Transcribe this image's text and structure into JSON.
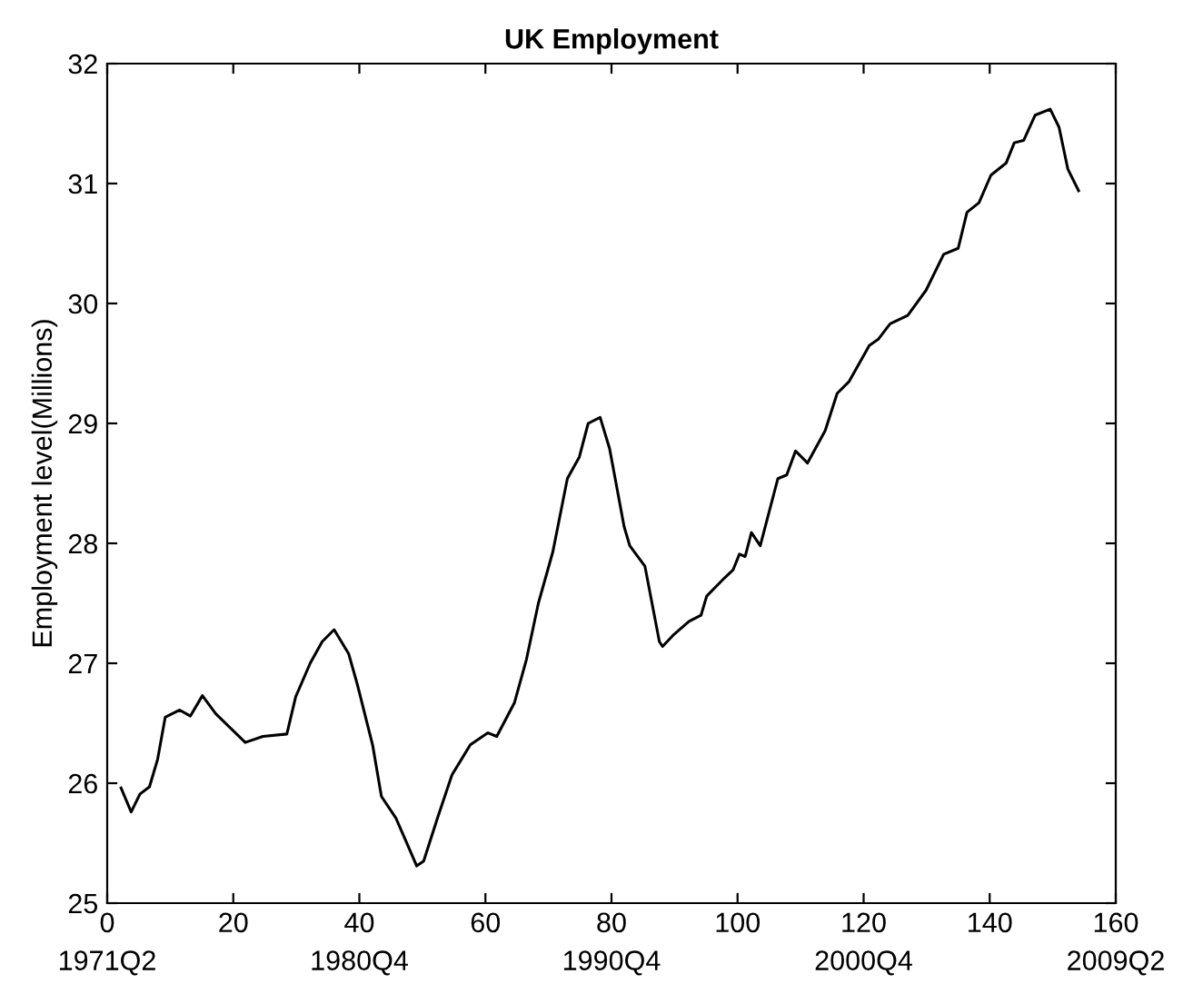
{
  "chart_data": {
    "type": "line",
    "title": "UK Employment",
    "ylabel": "Employment level(Millions)",
    "xlim": [
      0,
      160
    ],
    "xticks": [
      {
        "value": 0,
        "label": "0\n1971Q2"
      },
      20,
      {
        "value": 40,
        "label": "40\n1980Q4"
      },
      60,
      {
        "value": 80,
        "label": "80\n1990Q4"
      },
      100,
      {
        "value": 120,
        "label": "120\n2000Q4"
      },
      140,
      {
        "value": 160,
        "label": "160\n2009Q2"
      }
    ],
    "ylim": [
      25,
      32
    ],
    "yticks": [
      25,
      26,
      27,
      28,
      29,
      30,
      31,
      32
    ],
    "grid": false,
    "legend": false,
    "marker": "none",
    "line_style": "solid",
    "series": [
      {
        "color": "#000000",
        "x": [
          2.2,
          3.8,
          5.2,
          6.7,
          8,
          9.2,
          11.5,
          13.2,
          15.1,
          17.2,
          21.9,
          24.7,
          28.5,
          29.9,
          32.2,
          34.1,
          36,
          38.3,
          39.7,
          42.1,
          43.5,
          45.8,
          47.7,
          49.1,
          50.2,
          52.4,
          54.7,
          57.6,
          60.4,
          61.8,
          64.6,
          66.5,
          68.4,
          70.7,
          73,
          74.9,
          76.3,
          78.2,
          79.7,
          82,
          82.9,
          85.3,
          87.6,
          88.1,
          89.9,
          92.3,
          94.2,
          95.1,
          97.9,
          99.3,
          100.3,
          101.2,
          102.2,
          103.6,
          106.4,
          107.8,
          109.2,
          111.1,
          113.9,
          115.8,
          117.7,
          120.9,
          122.3,
          124.2,
          127,
          129.9,
          132.7,
          135,
          136.4,
          138.3,
          140.2,
          142.6,
          143.9,
          145.4,
          147.2,
          149.6,
          151,
          152.4,
          154.1
        ],
        "values": [
          25.96,
          25.76,
          25.91,
          25.97,
          26.2,
          26.55,
          26.61,
          26.56,
          26.73,
          26.58,
          26.34,
          26.39,
          26.41,
          26.72,
          27.0,
          27.18,
          27.28,
          27.08,
          26.82,
          26.32,
          25.89,
          25.71,
          25.48,
          25.31,
          25.35,
          25.71,
          26.07,
          26.32,
          26.42,
          26.39,
          26.67,
          27.03,
          27.5,
          27.93,
          28.54,
          28.72,
          29.0,
          29.05,
          28.79,
          28.14,
          27.98,
          27.81,
          27.18,
          27.14,
          27.24,
          27.35,
          27.4,
          27.56,
          27.71,
          27.78,
          27.91,
          27.89,
          28.09,
          27.98,
          28.54,
          28.57,
          28.77,
          28.67,
          28.94,
          29.25,
          29.35,
          29.65,
          29.7,
          29.83,
          29.9,
          30.11,
          30.41,
          30.46,
          30.76,
          30.84,
          31.07,
          31.17,
          31.34,
          31.36,
          31.57,
          31.62,
          31.47,
          31.12,
          30.94
        ]
      }
    ]
  }
}
